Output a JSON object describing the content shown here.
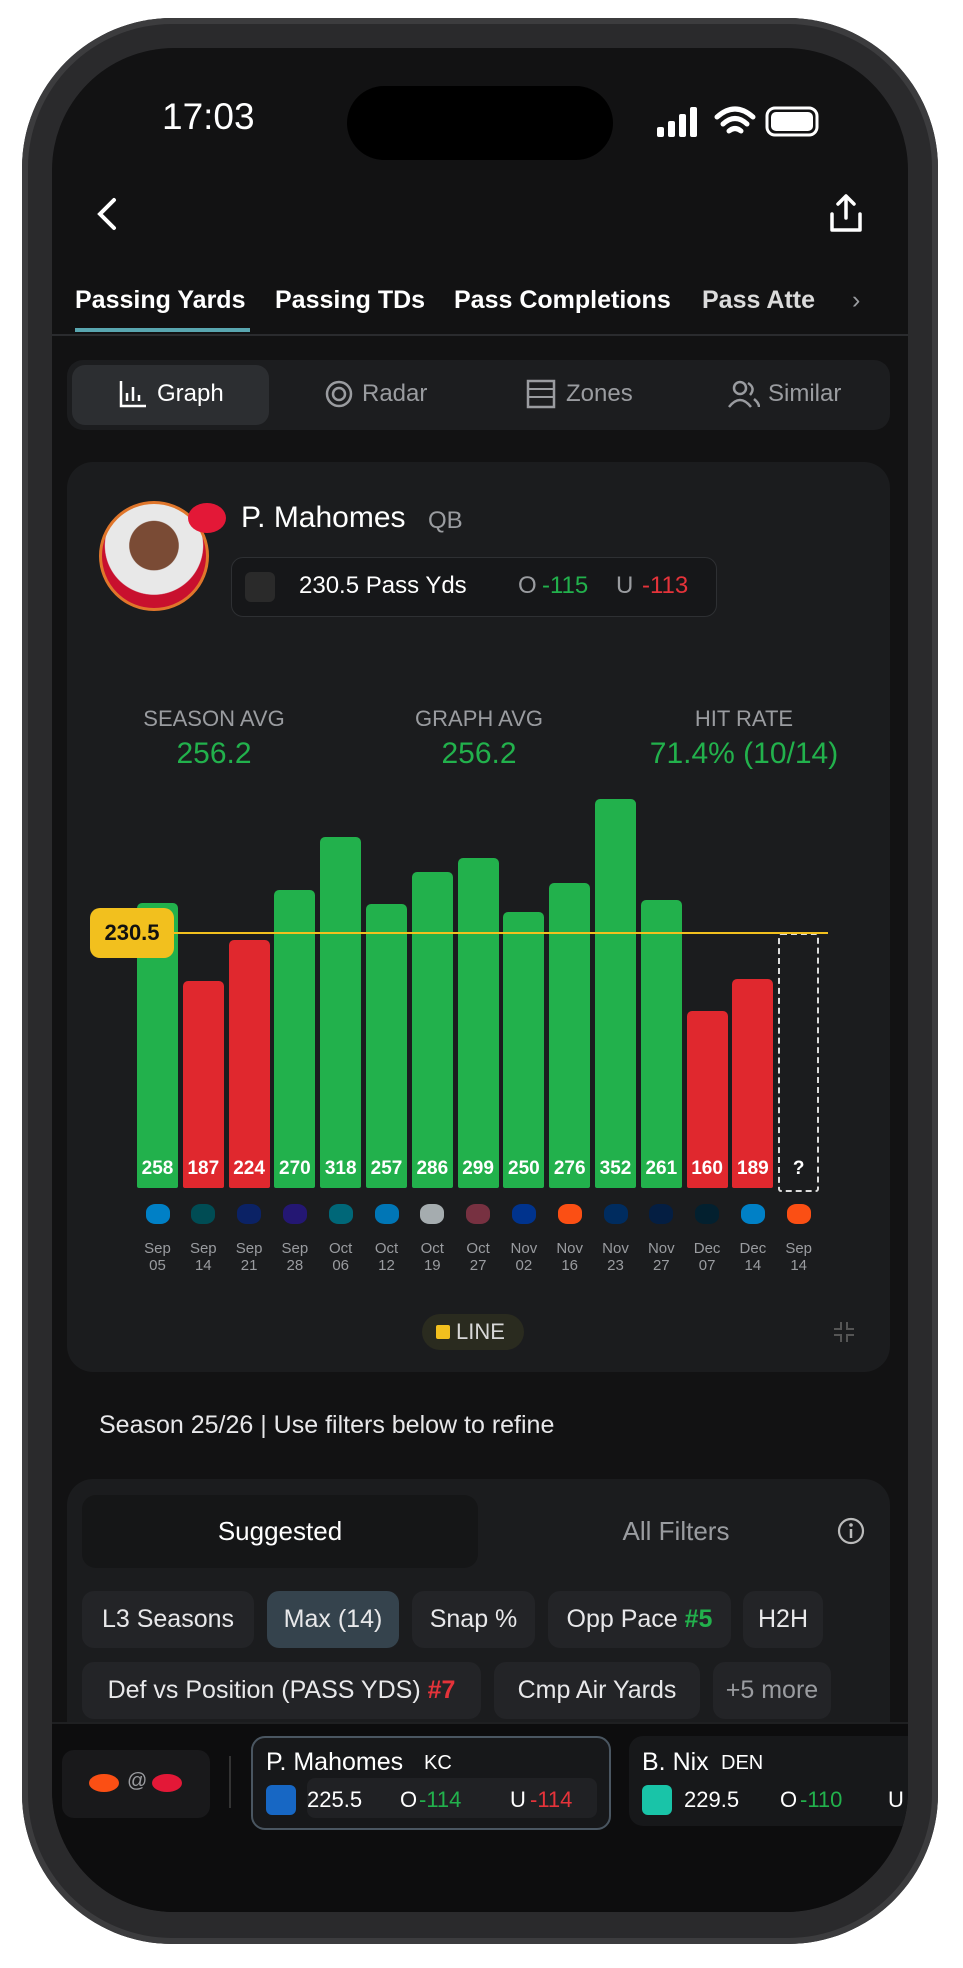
{
  "status_bar": {
    "time": "17:03"
  },
  "tabs": [
    "Passing Yards",
    "Passing TDs",
    "Pass Completions",
    "Pass Atte"
  ],
  "view_modes": [
    "Graph",
    "Radar",
    "Zones",
    "Similar"
  ],
  "player": {
    "name": "P. Mahomes",
    "position": "QB",
    "line": "230.5 Pass Yds",
    "over_label": "O",
    "over_odds": "-115",
    "under_label": "U",
    "under_odds": "-113"
  },
  "stats": [
    {
      "label": "SEASON AVG",
      "value": "256.2"
    },
    {
      "label": "GRAPH AVG",
      "value": "256.2"
    },
    {
      "label": "HIT RATE",
      "value": "71.4% (10/14)"
    }
  ],
  "chart_data": {
    "type": "bar",
    "categories": [
      "Sep 05",
      "Sep 14",
      "Sep 21",
      "Sep 28",
      "Oct 06",
      "Oct 12",
      "Oct 19",
      "Oct 27",
      "Nov 02",
      "Nov 16",
      "Nov 23",
      "Nov 27",
      "Dec 07",
      "Dec 14",
      "Sep 14"
    ],
    "values": [
      258,
      187,
      224,
      270,
      318,
      257,
      286,
      299,
      250,
      276,
      352,
      261,
      160,
      189,
      null
    ],
    "value_labels": [
      "258",
      "187",
      "224",
      "270",
      "318",
      "257",
      "286",
      "299",
      "250",
      "276",
      "352",
      "261",
      "160",
      "189",
      "?"
    ],
    "line": 230.5,
    "legend": "LINE",
    "ylim": [
      0,
      400
    ],
    "over_color": "#22b14c",
    "under_color": "#e0282e",
    "line_color": "#f2c01e"
  },
  "season_note": "Season 25/26 | Use filters below to refine",
  "filter_tabs": [
    "Suggested",
    "All Filters"
  ],
  "chips": [
    {
      "label": "L3 Seasons"
    },
    {
      "label": "Max (14)"
    },
    {
      "label": "Snap %"
    },
    {
      "label": "Opp Pace",
      "rank": "#5"
    },
    {
      "label": "H2H"
    },
    {
      "label": "Def vs Position (PASS YDS)",
      "rank": "#7"
    },
    {
      "label": "Cmp Air Yards"
    },
    {
      "label": "+5 more"
    }
  ],
  "bottom_bar": {
    "separator": "@",
    "cards": [
      {
        "name": "P. Mahomes",
        "team": "KC",
        "line": "225.5",
        "over_label": "O",
        "over": "-114",
        "under_label": "U",
        "under": "-114"
      },
      {
        "name": "B. Nix",
        "team": "DEN",
        "line": "229.5",
        "over_label": "O",
        "over": "-110",
        "under_label": "U"
      }
    ]
  }
}
